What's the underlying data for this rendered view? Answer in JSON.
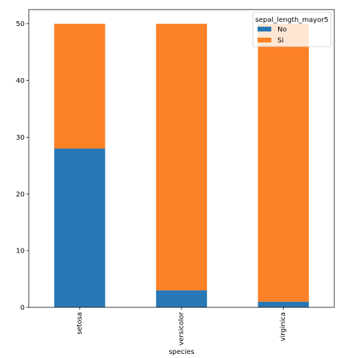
{
  "chart_data": {
    "type": "bar",
    "stacked": true,
    "categories": [
      "setosa",
      "versicolor",
      "virginica"
    ],
    "series": [
      {
        "name": "No",
        "values": [
          28,
          3,
          1
        ],
        "color": "#2878b5"
      },
      {
        "name": "Si",
        "values": [
          22,
          47,
          49
        ],
        "color": "#fd8127"
      }
    ],
    "xlabel": "species",
    "ylabel": "",
    "title": "",
    "ylim": [
      0,
      52.5
    ],
    "yticks": [
      0,
      10,
      20,
      30,
      40,
      50
    ],
    "grid": false,
    "legend": {
      "title": "sepal_length_mayor5",
      "placement": "top-right"
    }
  }
}
